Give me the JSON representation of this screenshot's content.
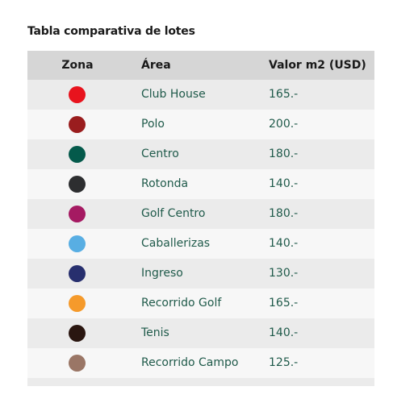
{
  "title": "Tabla comparativa de lotes",
  "headers": {
    "zona": "Zona",
    "area": "Área",
    "valor": "Valor m2 (USD)"
  },
  "rows": [
    {
      "color": "#e8131d",
      "area": "Club House",
      "valor": "165.-"
    },
    {
      "color": "#9a1d1e",
      "area": "Polo",
      "valor": "200.-"
    },
    {
      "color": "#045a4b",
      "area": "Centro",
      "valor": "180.-"
    },
    {
      "color": "#2d2e30",
      "area": "Rotonda",
      "valor": "140.-"
    },
    {
      "color": "#a51a62",
      "area": "Golf Centro",
      "valor": "180.-"
    },
    {
      "color": "#58aee3",
      "area": "Caballerizas",
      "valor": "140.-"
    },
    {
      "color": "#272f6e",
      "area": "Ingreso",
      "valor": "130.-"
    },
    {
      "color": "#f59a2b",
      "area": "Recorrido Golf",
      "valor": "165.-"
    },
    {
      "color": "#2a1610",
      "area": "Tenis",
      "valor": "140.-"
    },
    {
      "color": "#9a7666",
      "area": "Recorrido Campo",
      "valor": "125.-"
    }
  ]
}
